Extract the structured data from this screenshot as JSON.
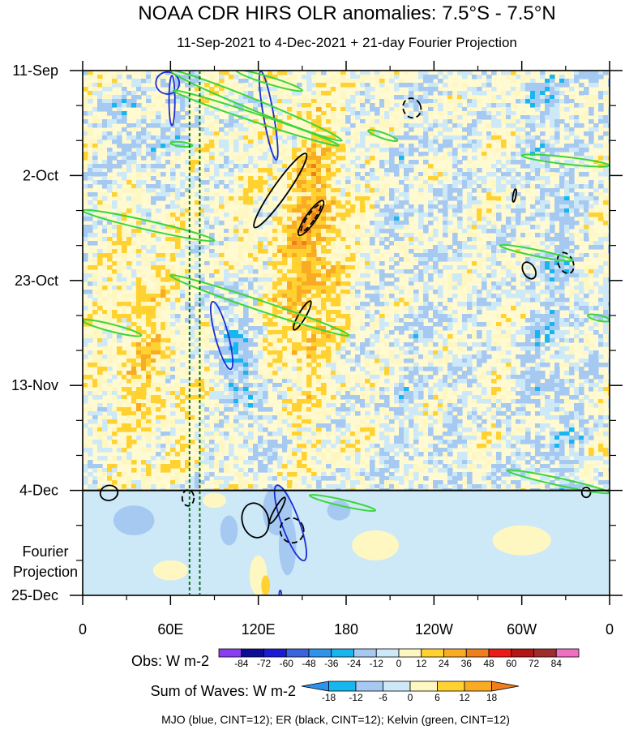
{
  "chart_data": {
    "type": "heatmap",
    "title": "NOAA CDR HIRS OLR anomalies: 7.5°S - 7.5°N",
    "subtitle": "11-Sep-2021 to 4-Dec-2021 + 21-day Fourier Projection",
    "x_axis": {
      "ticks": [
        "0",
        "60E",
        "120E",
        "180",
        "120W",
        "60W",
        "0"
      ],
      "tick_values": [
        0,
        60,
        120,
        180,
        240,
        300,
        360
      ],
      "range": [
        0,
        360
      ]
    },
    "y_axis": {
      "ticks": [
        "11-Sep",
        "2-Oct",
        "23-Oct",
        "13-Nov",
        "4-Dec",
        "25-Dec"
      ],
      "day_values": [
        0,
        21,
        42,
        63,
        84,
        105
      ],
      "range_days": [
        0,
        105
      ],
      "reversed": true
    },
    "projection_label_line1": "Fourier",
    "projection_label_line2": "Projection",
    "projection_start_day": 84,
    "reference_lines_lon": [
      73,
      80
    ],
    "colorbars": [
      {
        "label": "Obs: W m-2",
        "ticks": [
          "-84",
          "-72",
          "-60",
          "-48",
          "-36",
          "-24",
          "-12",
          "0",
          "12",
          "24",
          "36",
          "48",
          "60",
          "72",
          "84"
        ],
        "colors": [
          "#8a3cf0",
          "#0c0c96",
          "#1b1bd6",
          "#3a64dd",
          "#2f93ec",
          "#17b6ee",
          "#a6c9f2",
          "#cde9f7",
          "#fff7c2",
          "#ffd232",
          "#f9ab24",
          "#f07e1c",
          "#ee1a1a",
          "#b41515",
          "#a02b2b",
          "#f06ec0"
        ]
      },
      {
        "label": "Sum of Waves: W m-2",
        "ticks": [
          "-18",
          "-12",
          "-6",
          "0",
          "6",
          "12",
          "18"
        ],
        "colors": [
          "#2f93ec",
          "#17b6ee",
          "#a6c9f2",
          "#cde9f7",
          "#fff7c2",
          "#ffd232",
          "#f9ab24",
          "#f07e1c"
        ]
      }
    ],
    "caption": "MJO (blue, CINT=12); ER (black, CINT=12); Kelvin (green, CINT=12)",
    "series": [
      {
        "name": "MJO",
        "color": "#1a2dd6",
        "contours": [
          {
            "lon": 58,
            "day": 2.5,
            "rx": 8,
            "ry": 2.2,
            "angle": 5
          },
          {
            "lon": 61,
            "day": 6,
            "rx": 2,
            "ry": 5,
            "angle": 0
          },
          {
            "lon": 127,
            "day": 9,
            "rx": 3.5,
            "ry": 9,
            "angle": -10
          },
          {
            "lon": 95,
            "day": 53,
            "rx": 4.5,
            "ry": 7,
            "angle": -15
          },
          {
            "lon": 142,
            "day": 90.5,
            "rx": 6,
            "ry": 8,
            "angle": -20
          },
          {
            "lon": 135,
            "day": 105,
            "rx": 0.8,
            "ry": 1,
            "angle": 0
          }
        ]
      },
      {
        "name": "ER",
        "color": "#000000",
        "contours": [
          {
            "lon": 135,
            "day": 24,
            "rx": 5,
            "ry": 9,
            "angle": 35,
            "dashed": false
          },
          {
            "lon": 156,
            "day": 29.5,
            "rx": 3.5,
            "ry": 4.2,
            "angle": 35,
            "dashed": false
          },
          {
            "lon": 156,
            "day": 29.5,
            "rx": 2.4,
            "ry": 3.3,
            "angle": 35,
            "dashed": true
          },
          {
            "lon": 150,
            "day": 49,
            "rx": 2.5,
            "ry": 3.3,
            "angle": 30,
            "dashed": false
          },
          {
            "lon": 225,
            "day": 7.5,
            "rx": 6,
            "ry": 2,
            "angle": -25,
            "dashed": true
          },
          {
            "lon": 330,
            "day": 38.5,
            "rx": 5,
            "ry": 2.2,
            "angle": -25,
            "dashed": true
          },
          {
            "lon": 305,
            "day": 40,
            "rx": 4,
            "ry": 1.8,
            "angle": -30,
            "dashed": false
          },
          {
            "lon": 295,
            "day": 25,
            "rx": 1,
            "ry": 1.3,
            "angle": 10,
            "dashed": false
          },
          {
            "lon": 133,
            "day": 88,
            "rx": 2,
            "ry": 3,
            "angle": 30,
            "dashed": false
          },
          {
            "lon": 118,
            "day": 90,
            "rx": 9,
            "ry": 3.5,
            "angle": -15,
            "dashed": false
          },
          {
            "lon": 143,
            "day": 92,
            "rx": 8,
            "ry": 2.5,
            "angle": -20,
            "dashed": true
          },
          {
            "lon": 18,
            "day": 84.5,
            "rx": 6,
            "ry": 1.5,
            "angle": -12,
            "dashed": false
          },
          {
            "lon": 72,
            "day": 85.5,
            "rx": 4,
            "ry": 1.6,
            "angle": 0,
            "dashed": true
          },
          {
            "lon": 344,
            "day": 84.4,
            "rx": 3,
            "ry": 1,
            "angle": 0,
            "dashed": false
          }
        ]
      },
      {
        "name": "Kelvin",
        "color": "#3ad63a",
        "bands": [
          {
            "lon1": 60,
            "day1": 0,
            "lon2": 177,
            "day2": 14,
            "w": 1.2
          },
          {
            "lon1": 62,
            "day1": 4,
            "lon2": 175,
            "day2": 15,
            "w": 0.9
          },
          {
            "lon1": 105,
            "day1": 0,
            "lon2": 150,
            "day2": 4,
            "w": 0.8
          },
          {
            "lon1": 0,
            "day1": 28,
            "lon2": 90,
            "day2": 34,
            "w": 1.0
          },
          {
            "lon1": 60,
            "day1": 41,
            "lon2": 182,
            "day2": 53,
            "w": 1.1
          },
          {
            "lon1": 0,
            "day1": 50,
            "lon2": 40,
            "day2": 53,
            "w": 0.8
          },
          {
            "lon1": 300,
            "day1": 17,
            "lon2": 360,
            "day2": 19,
            "w": 0.8
          },
          {
            "lon1": 285,
            "day1": 35,
            "lon2": 335,
            "day2": 38,
            "w": 0.7
          },
          {
            "lon1": 290,
            "day1": 80,
            "lon2": 360,
            "day2": 84.5,
            "w": 0.8
          },
          {
            "lon1": 155,
            "day1": 85,
            "lon2": 200,
            "day2": 88,
            "w": 0.7
          },
          {
            "lon1": 345,
            "day1": 49,
            "lon2": 360,
            "day2": 50,
            "w": 0.6
          },
          {
            "lon1": 60,
            "day1": 14.5,
            "lon2": 75,
            "day2": 15,
            "w": 0.5
          },
          {
            "lon1": 195,
            "day1": 12,
            "lon2": 215,
            "day2": 14,
            "w": 0.6
          }
        ]
      }
    ]
  }
}
